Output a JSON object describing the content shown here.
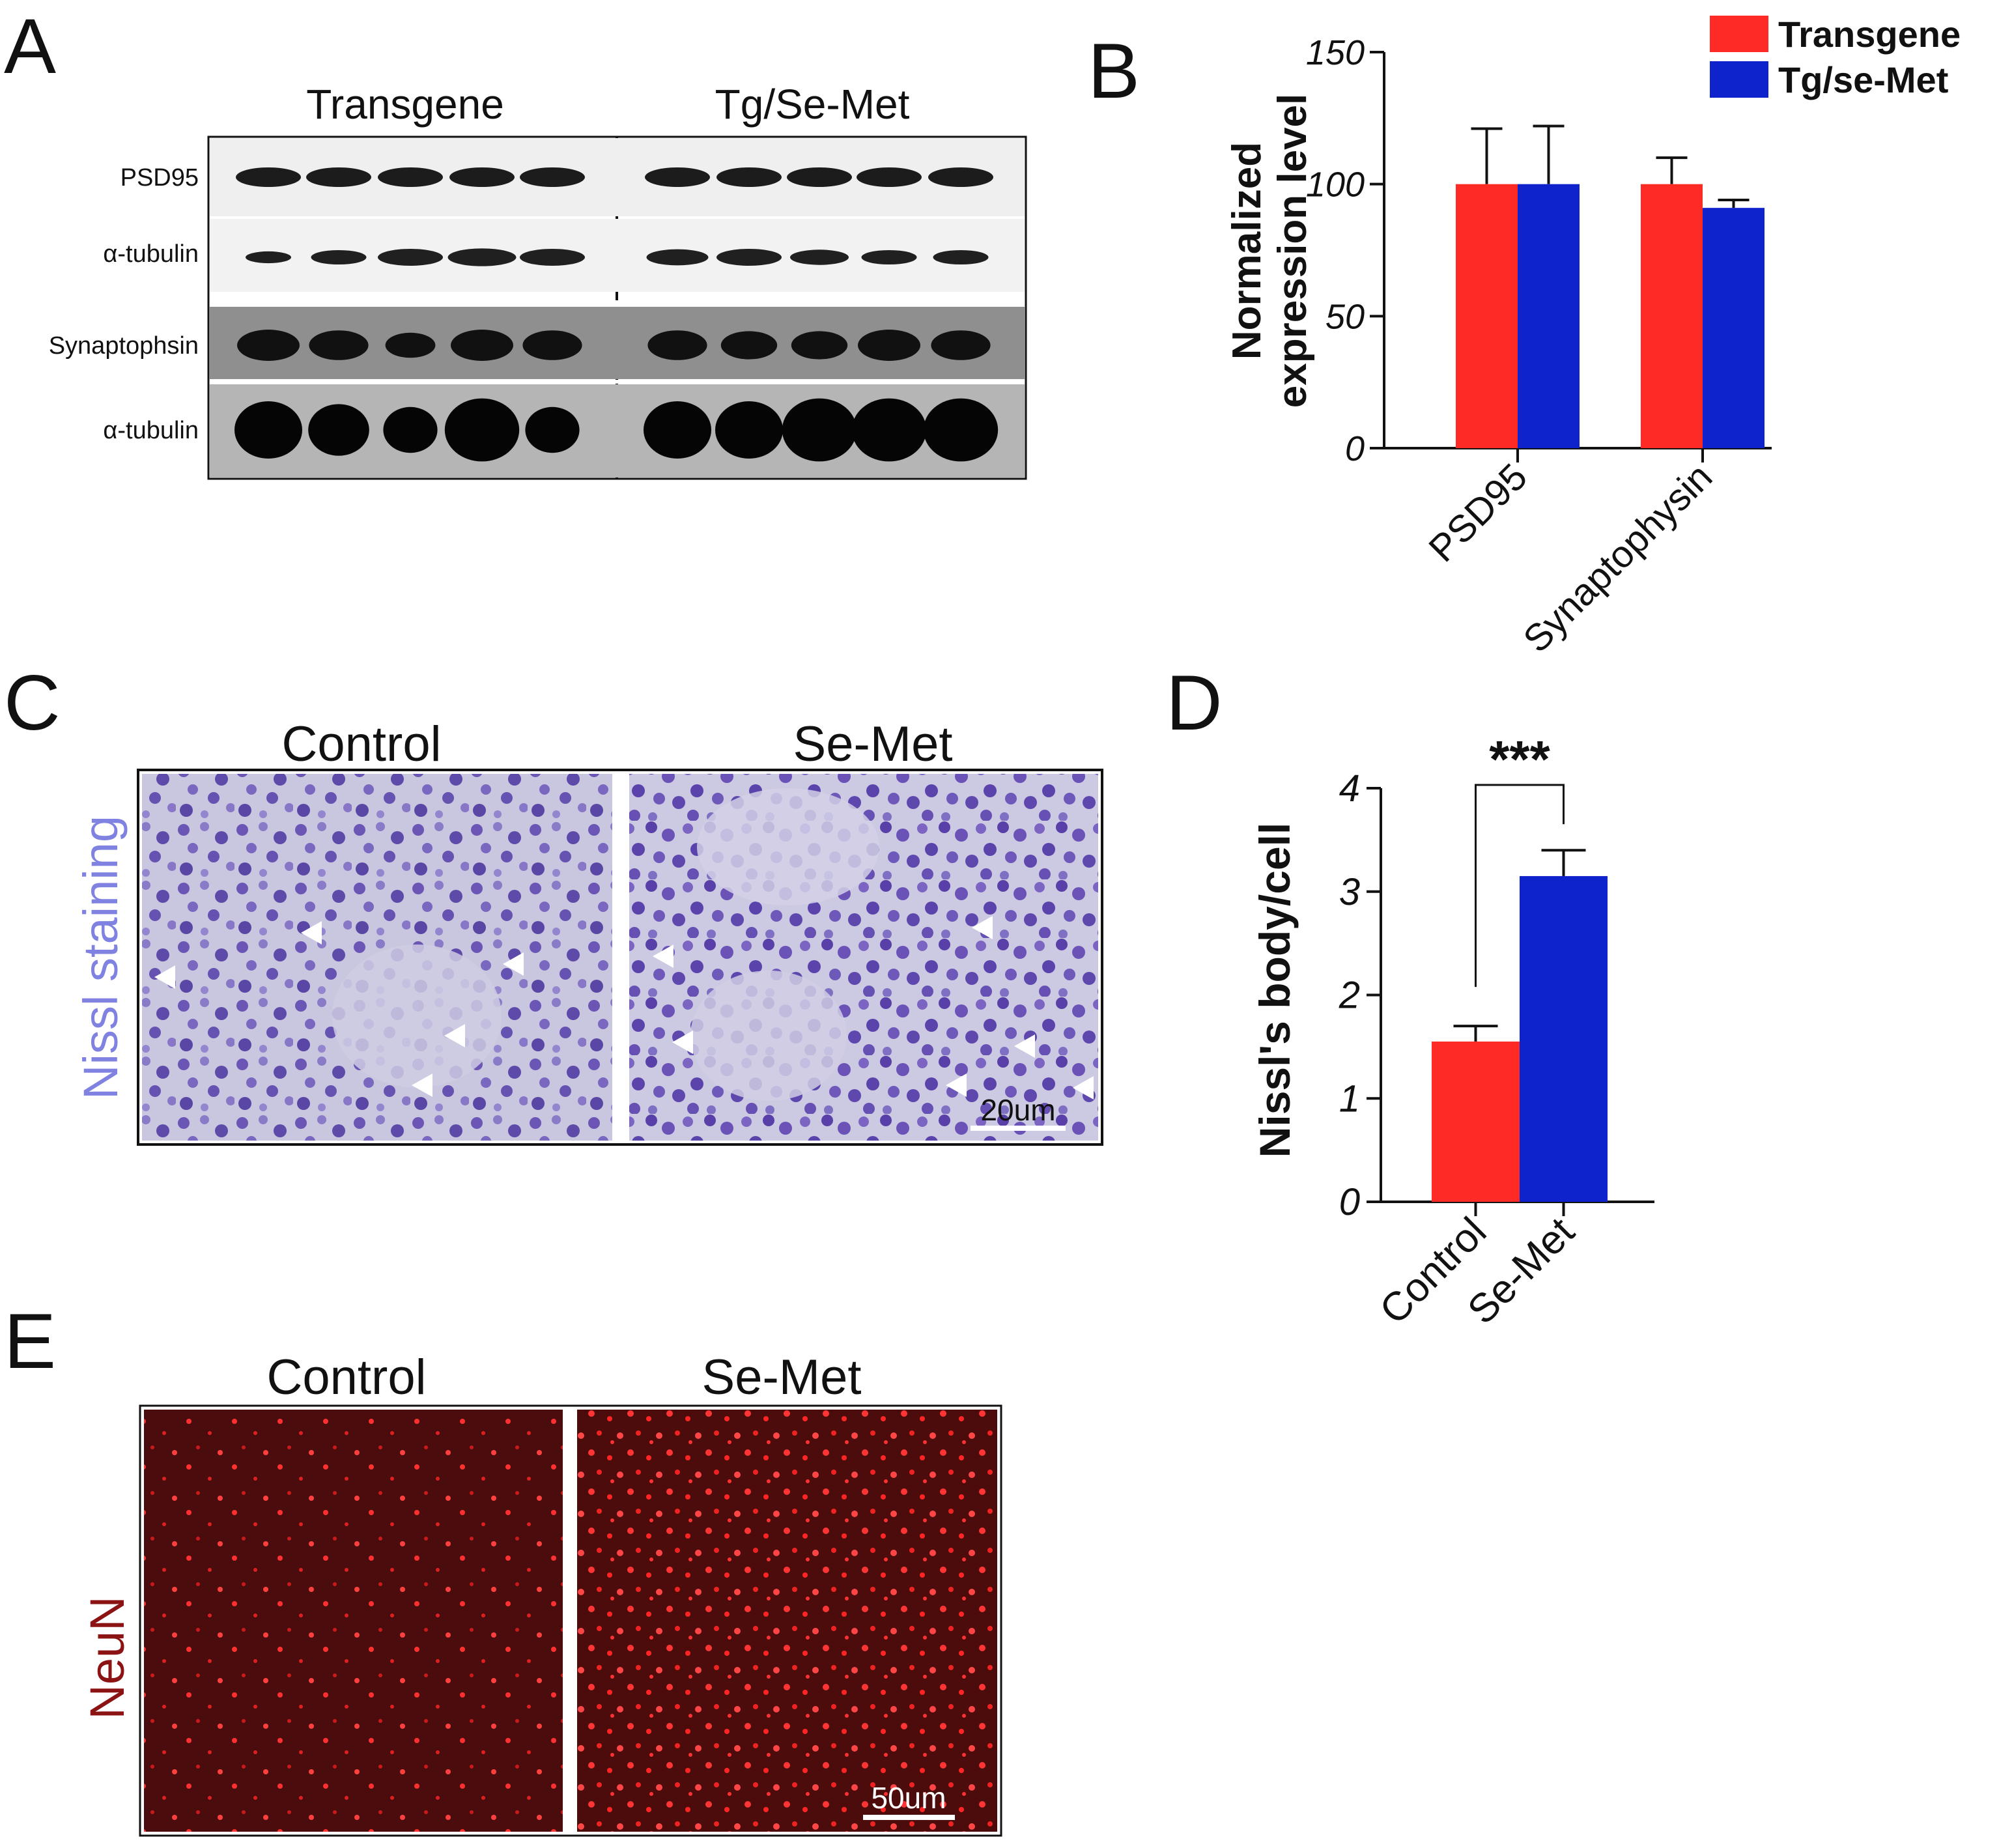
{
  "panels": {
    "a": {
      "letter": "A",
      "groups": [
        "Transgene",
        "Tg/Se-Met"
      ],
      "rows": [
        "PSD95",
        "α-tubulin",
        "Synaptophsin",
        "α-tubulin"
      ]
    },
    "b": {
      "letter": "B"
    },
    "c": {
      "letter": "C",
      "groups": [
        "Control",
        "Se-Met"
      ],
      "stain_label": "Nissl staining",
      "scale_bar": "20um"
    },
    "d": {
      "letter": "D",
      "significance": "***"
    },
    "e": {
      "letter": "E",
      "groups": [
        "Control",
        "Se-Met"
      ],
      "stain_label": "NeuN",
      "scale_bar": "50um"
    }
  },
  "colors": {
    "transgene_red": "#fe2a25",
    "semet_blue": "#0f23cc",
    "nissl_label": "#7f82e0",
    "neun_label": "#8b1313"
  },
  "chart_data": [
    {
      "type": "bar",
      "panel": "B",
      "ylabel": "Normalized expression level",
      "categories": [
        "PSD95",
        "Synaptophysin"
      ],
      "series": [
        {
          "name": "Transgene",
          "values": [
            100,
            100
          ],
          "errors": [
            21,
            10
          ],
          "color": "#fe2a25"
        },
        {
          "name": "Tg/se-Met",
          "values": [
            100,
            91
          ],
          "errors": [
            22,
            3
          ],
          "color": "#0f23cc"
        }
      ],
      "ylim": [
        0,
        150
      ],
      "yticks": [
        "0",
        "50",
        "100",
        "150"
      ],
      "legend": "top-right"
    },
    {
      "type": "bar",
      "panel": "D",
      "ylabel": "Nissl's body/cell",
      "categories": [
        "Control",
        "Se-Met"
      ],
      "values": [
        1.55,
        3.15
      ],
      "errors": [
        0.15,
        0.25
      ],
      "colors": [
        "#fe2a25",
        "#0f23cc"
      ],
      "ylim": [
        0,
        4
      ],
      "yticks": [
        "0",
        "1",
        "2",
        "3",
        "4"
      ]
    }
  ]
}
